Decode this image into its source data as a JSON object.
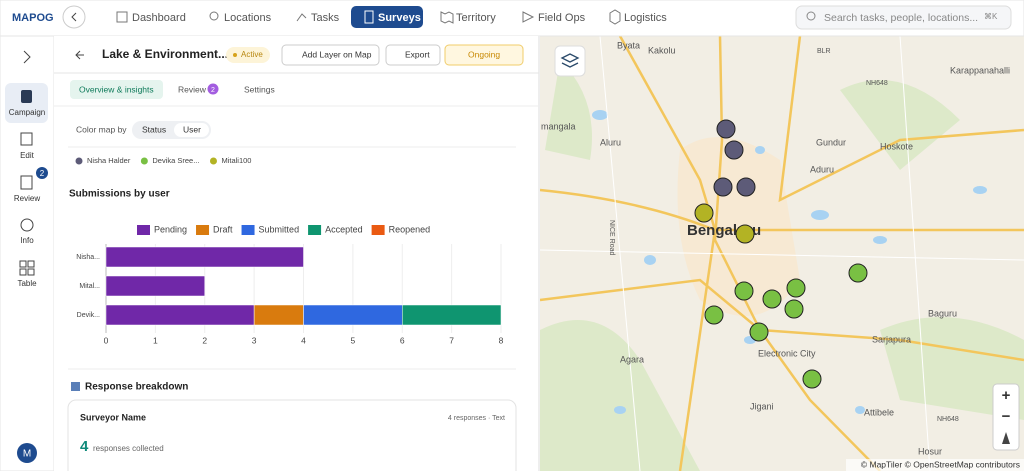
{
  "app": {
    "logo": "MAPOG",
    "nav": [
      "Dashboard",
      "Locations",
      "Tasks",
      "Surveys",
      "Territory",
      "Field Ops",
      "Logistics"
    ],
    "search_placeholder": "Search tasks, people, locations...",
    "shortcut": "⌘K"
  },
  "sidebar": {
    "items": [
      "Campaign",
      "Edit",
      "Review",
      "Info",
      "Table"
    ],
    "review_badge": 2,
    "avatar": "M"
  },
  "panel": {
    "title": "Lake & Environment...",
    "status": "Active",
    "buttons": [
      "Add Layer on Map",
      "Export",
      "Ongoing"
    ],
    "tabs": [
      "Overview & insights",
      "Review",
      "Settings"
    ],
    "review_tab_badge": 2,
    "color_map_label": "Color map by",
    "color_map_options": [
      "Status",
      "User"
    ],
    "users": [
      {
        "name": "Nisha Halder",
        "color": "#5d5b78"
      },
      {
        "name": "Devika Sree...",
        "color": "#79c043"
      },
      {
        "name": "Mitali100",
        "color": "#b3b324"
      }
    ],
    "chart_heading": "Submissions by user",
    "breakdown_heading": "Response breakdown",
    "card": {
      "title": "Surveyor Name",
      "meta": "4 responses · Text",
      "count": "4",
      "count_label": "responses collected"
    }
  },
  "chart_data": {
    "type": "bar",
    "orientation": "horizontal",
    "stacked": true,
    "categories": [
      "Nisha...",
      "Mital...",
      "Devik..."
    ],
    "series": [
      {
        "name": "Pending",
        "color": "#7028a8",
        "values": [
          4,
          2,
          3
        ]
      },
      {
        "name": "Draft",
        "color": "#d97b0e",
        "values": [
          0,
          0,
          1
        ]
      },
      {
        "name": "Submitted",
        "color": "#2f68e0",
        "values": [
          0,
          0,
          2
        ]
      },
      {
        "name": "Accepted",
        "color": "#0f9570",
        "values": [
          0,
          0,
          2
        ]
      },
      {
        "name": "Reopened",
        "color": "#ea5a12",
        "values": [
          0,
          0,
          0
        ]
      }
    ],
    "xlim": [
      0,
      8
    ],
    "xticks": [
      0,
      1,
      2,
      3,
      4,
      5,
      6,
      7,
      8
    ],
    "grid": true
  },
  "map": {
    "labels": [
      "Byata",
      "Kakolu",
      "BLR",
      "Karappanahalli",
      "NH648",
      "mangala",
      "Aluru",
      "Gundur",
      "Hoskote",
      "Aduru",
      "NICE Road",
      "Bengaluru",
      "Agara",
      "Electronic City",
      "Sarjapura",
      "Baguru",
      "Attibele",
      "Jigani",
      "Hosur",
      "NH648"
    ],
    "attribution": "© MapTiler © OpenStreetMap contributors"
  }
}
